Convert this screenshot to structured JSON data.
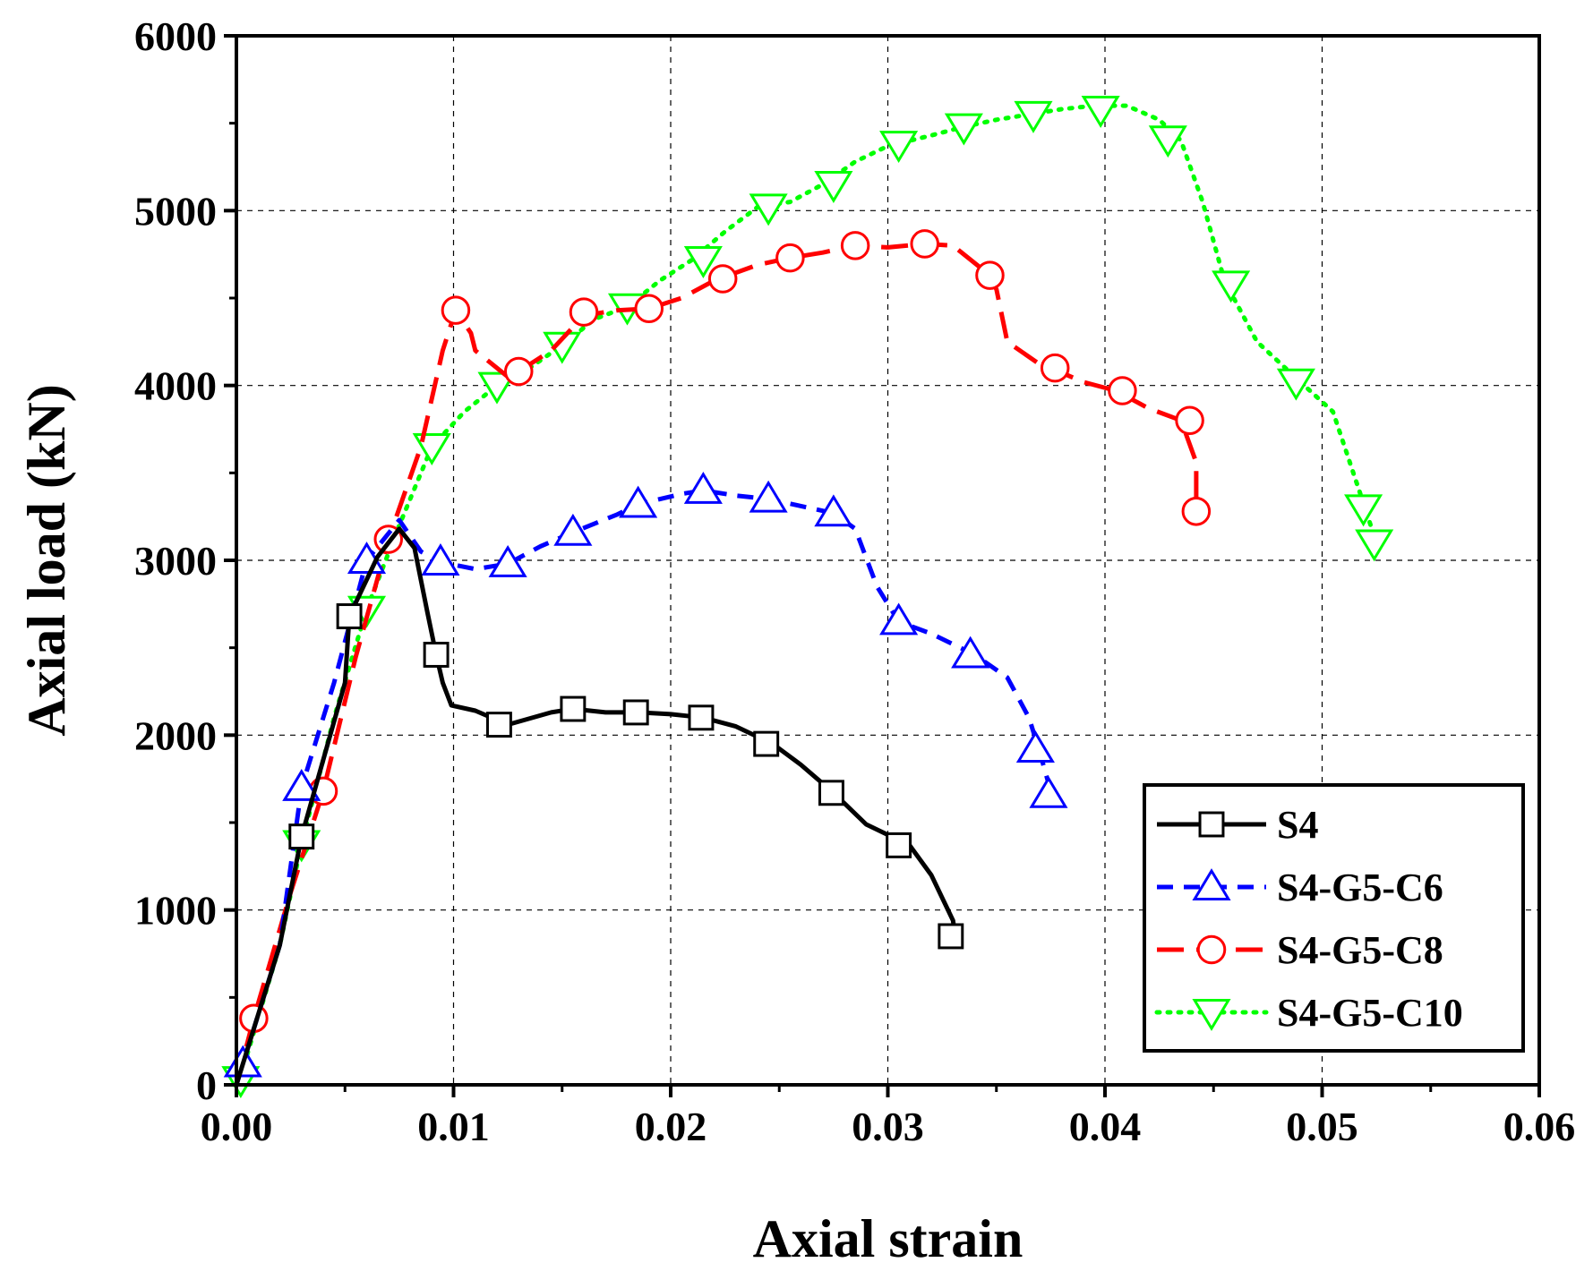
{
  "chart_data": {
    "type": "line",
    "title": "",
    "xlabel": "Axial strain",
    "ylabel": "Axial load (kN)",
    "xlim": [
      0,
      0.06
    ],
    "ylim": [
      0,
      6000
    ],
    "xticks": [
      0.0,
      0.01,
      0.02,
      0.03,
      0.04,
      0.05,
      0.06
    ],
    "xtick_labels": [
      "0.00",
      "0.01",
      "0.02",
      "0.03",
      "0.04",
      "0.05",
      "0.06"
    ],
    "yticks": [
      0,
      1000,
      2000,
      3000,
      4000,
      5000,
      6000
    ],
    "ytick_labels": [
      "0",
      "1000",
      "2000",
      "3000",
      "4000",
      "5000",
      "6000"
    ],
    "grid": true,
    "legend_position": "bottom-right",
    "series": [
      {
        "name": "S4",
        "color": "#000000",
        "line_style": "solid",
        "marker": "square",
        "curve": [
          [
            0,
            0
          ],
          [
            0.002,
            800
          ],
          [
            0.003,
            1420
          ],
          [
            0.005,
            2300
          ],
          [
            0.0052,
            2680
          ],
          [
            0.0065,
            3020
          ],
          [
            0.0075,
            3180
          ],
          [
            0.0082,
            3070
          ],
          [
            0.0088,
            2700
          ],
          [
            0.0092,
            2460
          ],
          [
            0.0095,
            2300
          ],
          [
            0.0099,
            2170
          ],
          [
            0.011,
            2140
          ],
          [
            0.0125,
            2060
          ],
          [
            0.0145,
            2130
          ],
          [
            0.0155,
            2150
          ],
          [
            0.017,
            2130
          ],
          [
            0.0185,
            2130
          ],
          [
            0.02,
            2120
          ],
          [
            0.0215,
            2100
          ],
          [
            0.023,
            2050
          ],
          [
            0.0247,
            1950
          ],
          [
            0.026,
            1830
          ],
          [
            0.0275,
            1670
          ],
          [
            0.029,
            1490
          ],
          [
            0.031,
            1370
          ],
          [
            0.032,
            1200
          ],
          [
            0.033,
            940
          ],
          [
            0.0331,
            850
          ]
        ],
        "markers": [
          [
            0.003,
            1420
          ],
          [
            0.0052,
            2680
          ],
          [
            0.0092,
            2460
          ],
          [
            0.0121,
            2060
          ],
          [
            0.0155,
            2150
          ],
          [
            0.0184,
            2130
          ],
          [
            0.0214,
            2100
          ],
          [
            0.0244,
            1950
          ],
          [
            0.0274,
            1670
          ],
          [
            0.0305,
            1370
          ],
          [
            0.0329,
            850
          ]
        ]
      },
      {
        "name": "S4-G5-C6",
        "color": "#0000ff",
        "line_style": "dashed",
        "marker": "triangle-up",
        "curve": [
          [
            0,
            0
          ],
          [
            0.0003,
            120
          ],
          [
            0.002,
            800
          ],
          [
            0.003,
            1700
          ],
          [
            0.0045,
            2300
          ],
          [
            0.006,
            3000
          ],
          [
            0.0075,
            3230
          ],
          [
            0.0085,
            3050
          ],
          [
            0.0094,
            2990
          ],
          [
            0.011,
            2950
          ],
          [
            0.0125,
            2980
          ],
          [
            0.014,
            3080
          ],
          [
            0.0155,
            3160
          ],
          [
            0.0175,
            3260
          ],
          [
            0.0185,
            3320
          ],
          [
            0.0205,
            3380
          ],
          [
            0.0215,
            3400
          ],
          [
            0.023,
            3370
          ],
          [
            0.0245,
            3350
          ],
          [
            0.026,
            3310
          ],
          [
            0.0275,
            3270
          ],
          [
            0.0285,
            3180
          ],
          [
            0.0295,
            2850
          ],
          [
            0.0305,
            2650
          ],
          [
            0.032,
            2580
          ],
          [
            0.034,
            2460
          ],
          [
            0.0355,
            2330
          ],
          [
            0.0365,
            2100
          ],
          [
            0.037,
            1900
          ],
          [
            0.0375,
            1680
          ]
        ],
        "markers": [
          [
            0.0003,
            120
          ],
          [
            0.003,
            1700
          ],
          [
            0.006,
            3000
          ],
          [
            0.0094,
            2990
          ],
          [
            0.0125,
            2980
          ],
          [
            0.0155,
            3160
          ],
          [
            0.0185,
            3320
          ],
          [
            0.0215,
            3400
          ],
          [
            0.0245,
            3350
          ],
          [
            0.0275,
            3270
          ],
          [
            0.0305,
            2650
          ],
          [
            0.0338,
            2460
          ],
          [
            0.0368,
            1920
          ],
          [
            0.0374,
            1660
          ]
        ]
      },
      {
        "name": "S4-G5-C8",
        "color": "#ff0000",
        "line_style": "long-dash",
        "marker": "circle",
        "curve": [
          [
            0,
            0
          ],
          [
            0.0008,
            380
          ],
          [
            0.0025,
            1100
          ],
          [
            0.004,
            1680
          ],
          [
            0.0055,
            2450
          ],
          [
            0.007,
            3120
          ],
          [
            0.0085,
            3650
          ],
          [
            0.0095,
            4200
          ],
          [
            0.0101,
            4430
          ],
          [
            0.0108,
            4300
          ],
          [
            0.011,
            4200
          ],
          [
            0.0125,
            4050
          ],
          [
            0.013,
            4080
          ],
          [
            0.0145,
            4200
          ],
          [
            0.016,
            4400
          ],
          [
            0.0175,
            4430
          ],
          [
            0.019,
            4440
          ],
          [
            0.0205,
            4500
          ],
          [
            0.022,
            4600
          ],
          [
            0.024,
            4690
          ],
          [
            0.0255,
            4730
          ],
          [
            0.027,
            4760
          ],
          [
            0.0285,
            4800
          ],
          [
            0.03,
            4790
          ],
          [
            0.0317,
            4810
          ],
          [
            0.033,
            4800
          ],
          [
            0.0345,
            4650
          ],
          [
            0.035,
            4550
          ],
          [
            0.0355,
            4250
          ],
          [
            0.037,
            4120
          ],
          [
            0.0375,
            4100
          ],
          [
            0.039,
            4020
          ],
          [
            0.0405,
            3970
          ],
          [
            0.042,
            3870
          ],
          [
            0.0435,
            3800
          ],
          [
            0.0442,
            3560
          ],
          [
            0.0442,
            3280
          ]
        ],
        "markers": [
          [
            0.0008,
            380
          ],
          [
            0.004,
            1680
          ],
          [
            0.007,
            3120
          ],
          [
            0.0101,
            4430
          ],
          [
            0.013,
            4080
          ],
          [
            0.016,
            4420
          ],
          [
            0.019,
            4440
          ],
          [
            0.0224,
            4610
          ],
          [
            0.0255,
            4730
          ],
          [
            0.0285,
            4800
          ],
          [
            0.0317,
            4810
          ],
          [
            0.0347,
            4630
          ],
          [
            0.0377,
            4100
          ],
          [
            0.0408,
            3970
          ],
          [
            0.0439,
            3800
          ],
          [
            0.0442,
            3280
          ]
        ]
      },
      {
        "name": "S4-G5-C10",
        "color": "#00ff00",
        "line_style": "dotted",
        "marker": "triangle-down",
        "curve": [
          [
            0,
            0
          ],
          [
            0.0002,
            50
          ],
          [
            0.002,
            800
          ],
          [
            0.003,
            1380
          ],
          [
            0.0045,
            2100
          ],
          [
            0.006,
            2720
          ],
          [
            0.0075,
            3200
          ],
          [
            0.009,
            3650
          ],
          [
            0.0105,
            3850
          ],
          [
            0.012,
            4000
          ],
          [
            0.0135,
            4100
          ],
          [
            0.015,
            4230
          ],
          [
            0.0165,
            4380
          ],
          [
            0.018,
            4450
          ],
          [
            0.0195,
            4600
          ],
          [
            0.021,
            4720
          ],
          [
            0.0225,
            4880
          ],
          [
            0.024,
            5020
          ],
          [
            0.0255,
            5050
          ],
          [
            0.027,
            5150
          ],
          [
            0.0285,
            5280
          ],
          [
            0.03,
            5370
          ],
          [
            0.032,
            5430
          ],
          [
            0.0335,
            5480
          ],
          [
            0.035,
            5520
          ],
          [
            0.0365,
            5550
          ],
          [
            0.038,
            5580
          ],
          [
            0.0395,
            5600
          ],
          [
            0.041,
            5600
          ],
          [
            0.0425,
            5520
          ],
          [
            0.0435,
            5400
          ],
          [
            0.0445,
            5050
          ],
          [
            0.0455,
            4600
          ],
          [
            0.047,
            4250
          ],
          [
            0.049,
            4020
          ],
          [
            0.0505,
            3850
          ],
          [
            0.052,
            3290
          ],
          [
            0.0525,
            3100
          ]
        ],
        "markers": [
          [
            0.0002,
            30
          ],
          [
            0.003,
            1380
          ],
          [
            0.006,
            2720
          ],
          [
            0.009,
            3650
          ],
          [
            0.012,
            4000
          ],
          [
            0.015,
            4230
          ],
          [
            0.018,
            4450
          ],
          [
            0.0215,
            4720
          ],
          [
            0.0245,
            5020
          ],
          [
            0.0275,
            5150
          ],
          [
            0.0305,
            5380
          ],
          [
            0.0335,
            5480
          ],
          [
            0.0367,
            5550
          ],
          [
            0.0398,
            5580
          ],
          [
            0.0429,
            5410
          ],
          [
            0.0458,
            4580
          ],
          [
            0.0488,
            4020
          ],
          [
            0.0519,
            3300
          ],
          [
            0.0524,
            3100
          ]
        ]
      }
    ]
  }
}
